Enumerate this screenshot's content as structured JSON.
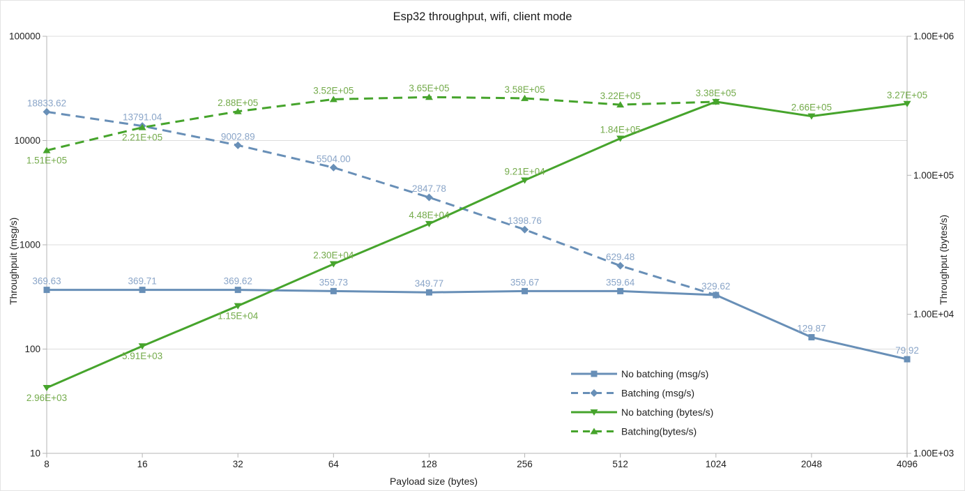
{
  "title": "Esp32 throughput, wifi, client mode",
  "axes": {
    "x": {
      "title": "Payload size (bytes)",
      "categories": [
        "8",
        "16",
        "32",
        "64",
        "128",
        "256",
        "512",
        "1024",
        "2048",
        "4096"
      ]
    },
    "left": {
      "title": "Throughpuit (msg/s)",
      "ticks": [
        "100000",
        "10000",
        "1000",
        "100",
        "10"
      ],
      "range": [
        10,
        100000
      ],
      "scale": "log"
    },
    "right": {
      "title": "Throughput (bytes/s)",
      "ticks": [
        "1.00E+06",
        "1.00E+05",
        "1.00E+04",
        "1.00E+03"
      ],
      "range": [
        1000,
        1000000
      ],
      "scale": "log"
    }
  },
  "colors": {
    "blue": "#688fb7",
    "blue_label": "#8aa5c8",
    "green": "#46a42c",
    "green_label": "#74ab4b",
    "grid": "#dcdcdc",
    "axis_line": "#b5b5b5",
    "text": "#1f1f1f"
  },
  "chart_data": {
    "type": "line",
    "title": "Esp32 throughput, wifi, client mode",
    "xlabel": "Payload size (bytes)",
    "ylabel_left": "Throughpuit (msg/s)",
    "ylabel_right": "Throughput (bytes/s)",
    "x": [
      8,
      16,
      32,
      64,
      128,
      256,
      512,
      1024,
      2048,
      4096
    ],
    "grid": "horizontal-major-left-axis",
    "legend_position": "inside-bottom-right",
    "series": [
      {
        "id": "no-batching-msg",
        "name": "No batching (msg/s)",
        "axis": "left",
        "style": "solid",
        "marker": "square",
        "color_key": "blue",
        "values": [
          369.63,
          369.71,
          369.62,
          359.73,
          349.77,
          359.67,
          359.64,
          329.62,
          129.87,
          79.92
        ],
        "labels": [
          "369.63",
          "369.71",
          "369.62",
          "359.73",
          "349.77",
          "359.67",
          "359.64",
          "329.62",
          "129.87",
          "79.92"
        ],
        "label_side": [
          "above",
          "above",
          "above",
          "above",
          "above",
          "above",
          "above",
          "above",
          "above",
          "above"
        ]
      },
      {
        "id": "batching-msg",
        "name": "Batching (msg/s)",
        "axis": "left",
        "style": "dashed",
        "marker": "diamond",
        "color_key": "blue",
        "values": [
          18833.62,
          13791.04,
          9002.89,
          5504.0,
          2847.78,
          1398.76,
          629.48,
          329.62
        ],
        "labels": [
          "18833.62",
          "13791.04",
          "9002.89",
          "5504.00",
          "2847.78",
          "1398.76",
          "629.48",
          ""
        ],
        "label_side": [
          "above",
          "above",
          "above",
          "above",
          "above",
          "above",
          "above",
          "above"
        ]
      },
      {
        "id": "no-batching-bytes",
        "name": "No batching (bytes/s)",
        "axis": "right",
        "style": "solid",
        "marker": "triangle-down",
        "color_key": "green",
        "values": [
          2960,
          5910,
          11500,
          23000,
          44800,
          92100,
          184000,
          338000,
          266000,
          327000
        ],
        "labels": [
          "2.96E+03",
          "5.91E+03",
          "1.15E+04",
          "2.30E+04",
          "4.48E+04",
          "9.21E+04",
          "1.84E+05",
          "",
          "2.66E+05",
          "3.27E+05"
        ],
        "label_side": [
          "below",
          "below",
          "below",
          "above",
          "above",
          "above",
          "above",
          "above",
          "above",
          "above"
        ]
      },
      {
        "id": "batching-bytes",
        "name": "Batching(bytes/s)",
        "axis": "right",
        "style": "dashed",
        "marker": "triangle-up",
        "color_key": "green",
        "values": [
          151000,
          221000,
          288000,
          352000,
          365000,
          358000,
          322000,
          338000
        ],
        "labels": [
          "1.51E+05",
          "2.21E+05",
          "2.88E+05",
          "3.52E+05",
          "3.65E+05",
          "3.58E+05",
          "3.22E+05",
          "3.38E+05"
        ],
        "label_side": [
          "below",
          "below",
          "above",
          "above",
          "above",
          "above",
          "above",
          "above"
        ]
      }
    ]
  }
}
